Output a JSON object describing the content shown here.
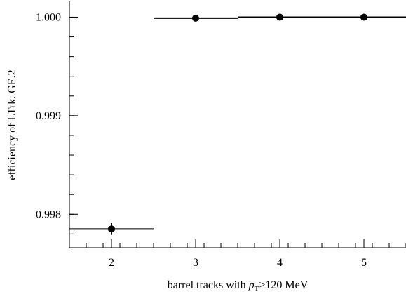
{
  "chart_data": {
    "type": "scatter",
    "title": "",
    "xlabel": {
      "prefix": "barrel tracks with ",
      "var": "p",
      "sub": "T",
      "suffix": ">120 MeV"
    },
    "ylabel": "efficiency of LTrk. GE.2",
    "xlim": [
      1.5,
      5.5
    ],
    "ylim": [
      0.99766,
      1.00016
    ],
    "x_ticks": [
      2,
      3,
      4,
      5
    ],
    "x_tick_labels": [
      "2",
      "3",
      "4",
      "5"
    ],
    "y_ticks": [
      0.998,
      0.999,
      1.0
    ],
    "y_tick_labels": [
      "0.998",
      "0.999",
      "1.000"
    ],
    "grid": false,
    "series": [
      {
        "points": [
          {
            "x": 2,
            "y": 0.99785,
            "x_err": 0.5,
            "y_err": 6e-05
          },
          {
            "x": 3,
            "y": 0.99999,
            "x_err": 0.5,
            "y_err": 0.0
          },
          {
            "x": 4,
            "y": 1.0,
            "x_err": 0.5,
            "y_err": 0.0
          },
          {
            "x": 5,
            "y": 1.0,
            "x_err": 0.5,
            "y_err": 0.0
          }
        ]
      }
    ],
    "colors": {
      "marker": "#000000",
      "axis": "#000000"
    }
  }
}
